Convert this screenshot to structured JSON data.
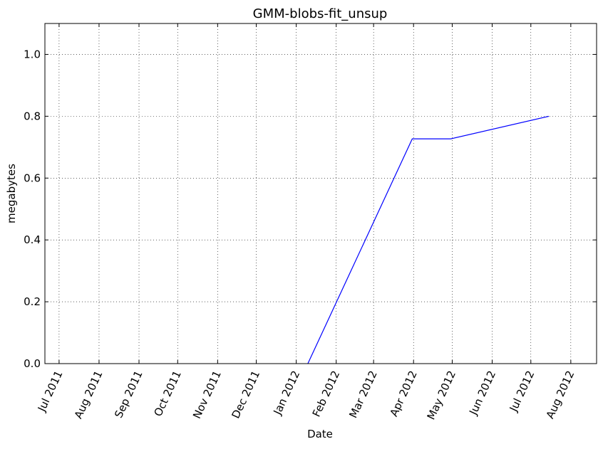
{
  "chart_data": {
    "type": "line",
    "title": "GMM-blobs-fit_unsup",
    "xlabel": "Date",
    "ylabel": "megabytes",
    "x_type": "date",
    "xlim": [
      "2011-06-20",
      "2012-08-21"
    ],
    "ylim": [
      0,
      1.1
    ],
    "grid": true,
    "x_ticks": [
      {
        "date": "2011-07-01",
        "label": "Jul 2011"
      },
      {
        "date": "2011-08-01",
        "label": "Aug 2011"
      },
      {
        "date": "2011-09-01",
        "label": "Sep 2011"
      },
      {
        "date": "2011-10-01",
        "label": "Oct 2011"
      },
      {
        "date": "2011-11-01",
        "label": "Nov 2011"
      },
      {
        "date": "2011-12-01",
        "label": "Dec 2011"
      },
      {
        "date": "2012-01-01",
        "label": "Jan 2012"
      },
      {
        "date": "2012-02-01",
        "label": "Feb 2012"
      },
      {
        "date": "2012-03-01",
        "label": "Mar 2012"
      },
      {
        "date": "2012-04-01",
        "label": "Apr 2012"
      },
      {
        "date": "2012-05-01",
        "label": "May 2012"
      },
      {
        "date": "2012-06-01",
        "label": "Jun 2012"
      },
      {
        "date": "2012-07-01",
        "label": "Jul 2012"
      },
      {
        "date": "2012-08-01",
        "label": "Aug 2012"
      }
    ],
    "y_ticks": [
      {
        "value": 0.0,
        "label": "0.0"
      },
      {
        "value": 0.2,
        "label": "0.2"
      },
      {
        "value": 0.4,
        "label": "0.4"
      },
      {
        "value": 0.6,
        "label": "0.6"
      },
      {
        "value": 0.8,
        "label": "0.8"
      },
      {
        "value": 1.0,
        "label": "1.0"
      }
    ],
    "series": [
      {
        "color": "#0000ff",
        "points": [
          {
            "x": "2012-01-10",
            "y": 0.0
          },
          {
            "x": "2012-03-31",
            "y": 0.727
          },
          {
            "x": "2012-04-30",
            "y": 0.727
          },
          {
            "x": "2012-07-15",
            "y": 0.8
          }
        ]
      }
    ]
  }
}
